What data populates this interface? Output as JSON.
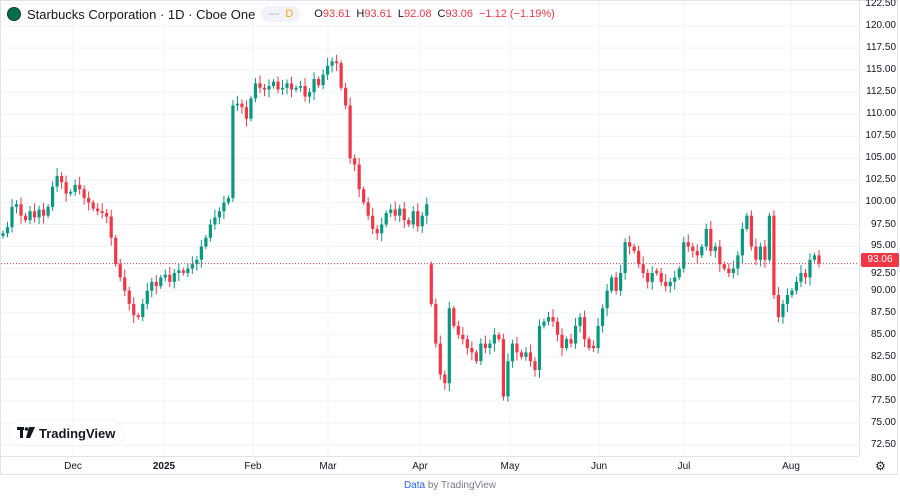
{
  "header": {
    "title": "Starbucks Corporation · 1D · Cboe One",
    "interval_badge": "D",
    "open_label": "O",
    "open": "93.61",
    "high_label": "H",
    "high": "93.61",
    "low_label": "L",
    "low": "92.08",
    "close_label": "C",
    "close": "93.06",
    "change": "−1.12 (−1.19%)"
  },
  "colors": {
    "up": "#089981",
    "down": "#f23645",
    "last_price_line": "#f23645"
  },
  "price_axis": {
    "ticks": [
      "122.50",
      "120.00",
      "117.50",
      "115.00",
      "112.50",
      "110.00",
      "107.50",
      "105.00",
      "102.50",
      "100.00",
      "97.50",
      "95.00",
      "92.50",
      "90.00",
      "87.50",
      "85.00",
      "82.50",
      "80.00",
      "77.50",
      "75.00",
      "72.50"
    ],
    "last_price": "93.06"
  },
  "time_axis": {
    "ticks": [
      {
        "label": "Dec",
        "bold": false
      },
      {
        "label": "2025",
        "bold": true
      },
      {
        "label": "Feb",
        "bold": false
      },
      {
        "label": "Mar",
        "bold": false
      },
      {
        "label": "Apr",
        "bold": false
      },
      {
        "label": "May",
        "bold": false
      },
      {
        "label": "Jun",
        "bold": false
      },
      {
        "label": "Jul",
        "bold": false
      },
      {
        "label": "Aug",
        "bold": false
      }
    ]
  },
  "watermark": {
    "text": "TradingView"
  },
  "footer": {
    "link": "Data",
    "text": "by TradingView"
  },
  "icons": {
    "settings": "gear-icon",
    "symbol": "starbucks-logo-icon"
  },
  "chart_data": {
    "type": "candlestick",
    "ylim": [
      72.5,
      122.5
    ],
    "last_price": 93.06,
    "gap_open": {
      "index": 95,
      "open": 93.0
    },
    "closes": [
      96.5,
      97.2,
      99.5,
      99.8,
      98.5,
      98,
      99,
      98.3,
      99.2,
      98.5,
      99.5,
      101.8,
      103,
      102.3,
      101,
      101.2,
      102,
      101.5,
      100.5,
      100,
      99.3,
      99,
      98.8,
      98.4,
      96,
      93,
      91.5,
      90,
      88.5,
      87.2,
      87,
      88.5,
      90,
      91,
      90.5,
      91.5,
      91.8,
      91,
      92,
      92.3,
      92,
      92.5,
      93,
      93.5,
      95,
      96,
      97.5,
      98.3,
      99,
      100,
      100.5,
      111,
      111.2,
      110.8,
      109.5,
      111.8,
      113.5,
      113,
      112.8,
      113.2,
      113.7,
      112.8,
      113,
      113.5,
      112.8,
      113,
      113.2,
      112,
      112.5,
      114,
      113.3,
      114.5,
      115.5,
      116,
      115.8,
      113,
      111,
      105,
      104.3,
      101.5,
      100,
      98.5,
      97,
      96.5,
      97.5,
      98.8,
      99.2,
      98.5,
      99.3,
      98,
      97.5,
      99,
      97.3,
      98.5,
      99.8,
      88.5,
      84,
      80.5,
      79.5,
      88,
      86,
      85,
      84.5,
      83.5,
      83,
      82,
      84,
      83.5,
      84,
      85,
      84.5,
      78,
      82,
      84,
      83,
      82.5,
      83,
      82,
      81,
      86,
      86.5,
      87,
      86.5,
      85,
      83.5,
      84.5,
      84,
      86,
      87,
      84.5,
      83.5,
      83.5,
      86,
      88,
      90,
      91.5,
      90,
      92,
      95.5,
      95,
      94.5,
      93,
      92,
      91,
      92,
      92,
      91,
      90.5,
      91,
      91.5,
      92.5,
      95.5,
      95,
      94.5,
      94,
      95,
      97,
      94.5,
      95,
      93,
      92.5,
      92,
      92.5,
      94,
      97,
      98.5,
      95,
      93.5,
      95,
      93.5,
      98.5,
      89.5,
      87,
      88.5,
      89.5,
      90,
      91,
      92,
      91.5,
      93.5,
      94,
      93.06
    ]
  }
}
